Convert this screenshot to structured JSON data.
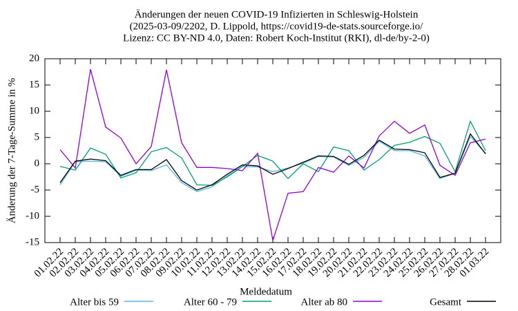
{
  "chart_data": {
    "type": "line",
    "title": [
      "Änderungen der neuen COVID-19 Infizierten in Schleswig-Holstein",
      "(2025-03-09/2202, D. Lippold, https://covid19-de-stats.sourceforge.io/",
      "Lizenz: CC BY-ND 4.0, Daten: Robert Koch-Institut (RKI), dl-de/by-2-0)"
    ],
    "xlabel": "Meldedatum",
    "ylabel": "Änderung der 7-Tage-Summe in %",
    "categories": [
      "01.02.22",
      "02.02.22",
      "03.02.22",
      "04.02.22",
      "05.02.22",
      "06.02.22",
      "07.02.22",
      "08.02.22",
      "09.02.22",
      "10.02.22",
      "11.02.22",
      "12.02.22",
      "13.02.22",
      "14.02.22",
      "15.02.22",
      "16.02.22",
      "17.02.22",
      "18.02.22",
      "19.02.22",
      "20.02.22",
      "21.02.22",
      "22.02.22",
      "23.02.22",
      "24.02.22",
      "25.02.22",
      "26.02.22",
      "27.02.22",
      "28.02.22",
      "01.03.22"
    ],
    "series": [
      {
        "name": "Alter bis 59",
        "color": "#56b4e9",
        "values": [
          -4,
          0.4,
          0.5,
          0.4,
          -2.4,
          -1.2,
          -1.3,
          -0.2,
          -3.6,
          -5.3,
          -4.4,
          -2.3,
          -0.5,
          -0.6,
          -1.5,
          -0.8,
          0.1,
          1.4,
          1.3,
          -0.3,
          1.2,
          4.3,
          2.5,
          2.5,
          1.5,
          -2.8,
          -1.8,
          5.2,
          2
        ]
      },
      {
        "name": "Alter 60 - 79",
        "color": "#009e73",
        "values": [
          -0.5,
          -1.2,
          3,
          1.8,
          -2.7,
          -1.7,
          2.3,
          3.1,
          1.1,
          -4,
          -4.1,
          -2.5,
          -0.5,
          1.6,
          0.5,
          -2.8,
          0,
          -1.5,
          3.2,
          2.5,
          -1.2,
          0.8,
          3.5,
          4.1,
          5.2,
          3.9,
          -1.5,
          8.1,
          2.5
        ]
      },
      {
        "name": "Alter ab 80",
        "color": "#9400d3",
        "values": [
          2.7,
          -0.8,
          18,
          7,
          4.9,
          0,
          3.3,
          17.9,
          4,
          -0.7,
          -0.7,
          -0.9,
          -1.3,
          2,
          -14.6,
          -5.6,
          -5.3,
          -0.7,
          -1.6,
          1.5,
          -0.8,
          5.3,
          8.1,
          5.8,
          7.4,
          -0.3,
          -2.2,
          4,
          4.7
        ]
      },
      {
        "name": "Gesamt",
        "color": "#000000",
        "values": [
          -3.6,
          0.5,
          0.9,
          0.6,
          -2.2,
          -1.1,
          -1.1,
          0.8,
          -3.2,
          -5,
          -4,
          -2,
          -0.2,
          -0.4,
          -2,
          -0.9,
          0.3,
          1.5,
          1.4,
          -0.1,
          1.6,
          4.5,
          2.8,
          2.7,
          2.1,
          -2.6,
          -1.8,
          5.7,
          1.9
        ]
      }
    ],
    "ylim": [
      -15,
      20
    ],
    "yticks": [
      -15,
      -10,
      -5,
      0,
      5,
      10,
      15,
      20
    ],
    "grid": false,
    "legend": "bottom"
  }
}
